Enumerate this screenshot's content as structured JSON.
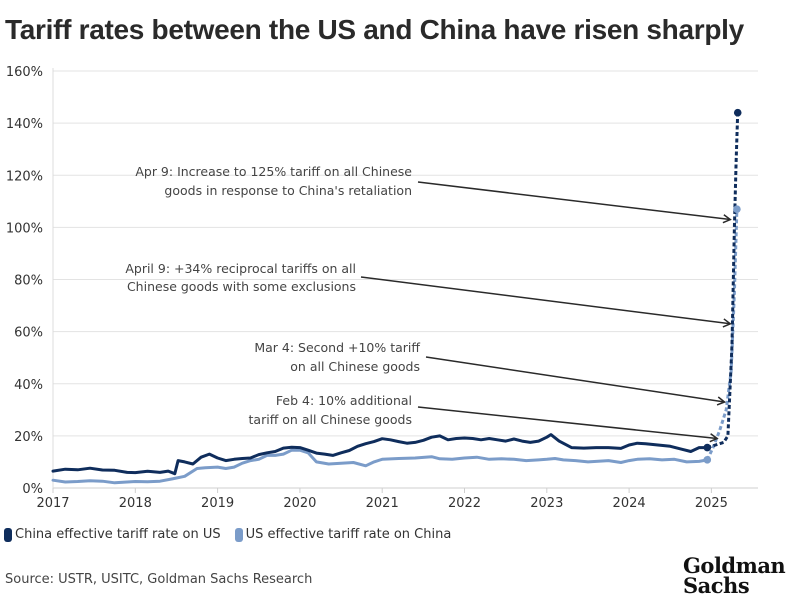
{
  "title": "Tariff rates between the US and China have risen sharply",
  "legend": [
    {
      "label": "China effective tariff rate on US",
      "color": "#0f2d5c"
    },
    {
      "label": "US effective tariff rate on China",
      "color": "#7b9cc9"
    }
  ],
  "source": "Source: USTR, USITC, Goldman Sachs Research",
  "logo": {
    "line1": "Goldman",
    "line2": "Sachs"
  },
  "chart_data": {
    "type": "line",
    "title": "Tariff rates between the US and China have risen sharply",
    "xlabel": "",
    "ylabel": "",
    "ylim": [
      0,
      160
    ],
    "xlim": [
      2017,
      2025.55
    ],
    "grid": true,
    "legend_position": "bottom-left",
    "y_ticks": [
      "0%",
      "20%",
      "40%",
      "60%",
      "80%",
      "100%",
      "120%",
      "140%",
      "160%"
    ],
    "y_tick_values": [
      0,
      20,
      40,
      60,
      80,
      100,
      120,
      140,
      160
    ],
    "x_ticks": [
      "2017",
      "2018",
      "2019",
      "2020",
      "2021",
      "2022",
      "2023",
      "2024",
      "2025"
    ],
    "x_tick_values": [
      2017,
      2018,
      2019,
      2020,
      2021,
      2022,
      2023,
      2024,
      2025
    ],
    "series": [
      {
        "name": "China effective tariff rate on US",
        "color": "#0f2d5c",
        "x": [
          2017.0,
          2017.15,
          2017.3,
          2017.45,
          2017.6,
          2017.75,
          2017.9,
          2018.0,
          2018.15,
          2018.3,
          2018.4,
          2018.48,
          2018.52,
          2018.6,
          2018.7,
          2018.8,
          2018.9,
          2019.0,
          2019.1,
          2019.2,
          2019.3,
          2019.4,
          2019.5,
          2019.6,
          2019.7,
          2019.8,
          2019.9,
          2020.0,
          2020.1,
          2020.2,
          2020.3,
          2020.4,
          2020.5,
          2020.6,
          2020.7,
          2020.8,
          2020.9,
          2021.0,
          2021.1,
          2021.2,
          2021.3,
          2021.4,
          2021.5,
          2021.6,
          2021.7,
          2021.8,
          2021.9,
          2022.0,
          2022.1,
          2022.2,
          2022.3,
          2022.4,
          2022.5,
          2022.6,
          2022.7,
          2022.8,
          2022.9,
          2023.0,
          2023.05,
          2023.15,
          2023.3,
          2023.45,
          2023.6,
          2023.75,
          2023.9,
          2024.0,
          2024.1,
          2024.2,
          2024.35,
          2024.5,
          2024.65,
          2024.75,
          2024.85,
          2024.95
        ],
        "values": [
          6.5,
          7.2,
          7.0,
          7.6,
          6.9,
          6.8,
          6.0,
          5.9,
          6.4,
          6.0,
          6.5,
          5.5,
          10.5,
          10.0,
          9.2,
          11.8,
          13.0,
          11.5,
          10.5,
          11.0,
          11.3,
          11.5,
          12.8,
          13.5,
          14.0,
          15.3,
          15.6,
          15.5,
          14.5,
          13.4,
          13.0,
          12.5,
          13.5,
          14.4,
          16.0,
          17.0,
          17.8,
          18.9,
          18.5,
          17.8,
          17.2,
          17.5,
          18.3,
          19.5,
          20.0,
          18.5,
          19.0,
          19.2,
          19.0,
          18.5,
          19.0,
          18.5,
          18.0,
          18.8,
          18.0,
          17.5,
          18.0,
          19.5,
          20.5,
          18.0,
          15.5,
          15.3,
          15.5,
          15.5,
          15.2,
          16.5,
          17.2,
          17.0,
          16.5,
          16.0,
          14.8,
          14.0,
          15.5,
          15.5
        ]
      },
      {
        "name": "China effective tariff rate on US (projected)",
        "color": "#0f2d5c",
        "style": "dashed",
        "x": [
          2024.95,
          2025.05,
          2025.15,
          2025.2,
          2025.25,
          2025.28,
          2025.3,
          2025.32
        ],
        "values": [
          15.5,
          16.5,
          17.5,
          20.0,
          55.0,
          100.0,
          125.0,
          144.0
        ]
      },
      {
        "name": "US effective tariff rate on China",
        "color": "#7b9cc9",
        "x": [
          2017.0,
          2017.15,
          2017.3,
          2017.45,
          2017.6,
          2017.75,
          2017.9,
          2018.0,
          2018.15,
          2018.3,
          2018.45,
          2018.6,
          2018.75,
          2018.85,
          2019.0,
          2019.1,
          2019.2,
          2019.3,
          2019.4,
          2019.5,
          2019.6,
          2019.7,
          2019.8,
          2019.9,
          2020.0,
          2020.1,
          2020.2,
          2020.35,
          2020.5,
          2020.65,
          2020.8,
          2020.9,
          2021.0,
          2021.2,
          2021.4,
          2021.6,
          2021.7,
          2021.85,
          2022.0,
          2022.15,
          2022.3,
          2022.45,
          2022.6,
          2022.75,
          2022.9,
          2023.0,
          2023.1,
          2023.2,
          2023.35,
          2023.5,
          2023.6,
          2023.75,
          2023.9,
          2024.0,
          2024.1,
          2024.25,
          2024.4,
          2024.55,
          2024.7,
          2024.85,
          2024.95
        ],
        "values": [
          3.0,
          2.3,
          2.5,
          2.8,
          2.6,
          2.0,
          2.3,
          2.5,
          2.4,
          2.6,
          3.5,
          4.5,
          7.5,
          7.8,
          8.0,
          7.5,
          8.0,
          9.5,
          10.5,
          11.0,
          12.5,
          12.5,
          13.0,
          14.5,
          14.5,
          13.5,
          10.0,
          9.2,
          9.5,
          9.8,
          8.5,
          10.0,
          11.0,
          11.3,
          11.5,
          12.0,
          11.2,
          11.0,
          11.5,
          11.8,
          11.0,
          11.2,
          11.0,
          10.5,
          10.8,
          11.0,
          11.3,
          10.8,
          10.5,
          10.0,
          10.2,
          10.5,
          9.8,
          10.5,
          11.0,
          11.2,
          10.8,
          11.0,
          10.0,
          10.2,
          10.8
        ]
      },
      {
        "name": "US effective tariff rate on China (projected)",
        "color": "#7b9cc9",
        "style": "dashed",
        "x": [
          2024.95,
          2025.02,
          2025.1,
          2025.18,
          2025.24,
          2025.28,
          2025.31
        ],
        "values": [
          10.8,
          15.5,
          22.0,
          30.0,
          45.0,
          75.0,
          107.0
        ]
      }
    ],
    "markers": [
      {
        "series": "China effective tariff rate on US",
        "x": 2024.95,
        "value": 15.5
      },
      {
        "series": "China effective tariff rate on US",
        "x": 2025.32,
        "value": 144.0
      },
      {
        "series": "US effective tariff rate on China",
        "x": 2024.95,
        "value": 10.8
      },
      {
        "series": "US effective tariff rate on China",
        "x": 2025.31,
        "value": 107.0
      }
    ],
    "annotations": [
      {
        "lines": [
          "Apr 9: Increase to 125% tariff on all Chinese",
          "goods in response to China's retaliation"
        ],
        "arrow_to": {
          "x": 2025.23,
          "value": 103
        }
      },
      {
        "lines": [
          "April 9: +34% reciprocal tariffs on all",
          "Chinese goods with some exclusions"
        ],
        "arrow_to": {
          "x": 2025.23,
          "value": 63
        }
      },
      {
        "lines": [
          "Mar 4: Second +10% tariff",
          "on all Chinese goods"
        ],
        "arrow_to": {
          "x": 2025.16,
          "value": 33
        }
      },
      {
        "lines": [
          "Feb 4: 10% additional",
          "tariff on all Chinese goods"
        ],
        "arrow_to": {
          "x": 2025.07,
          "value": 19
        }
      }
    ]
  }
}
